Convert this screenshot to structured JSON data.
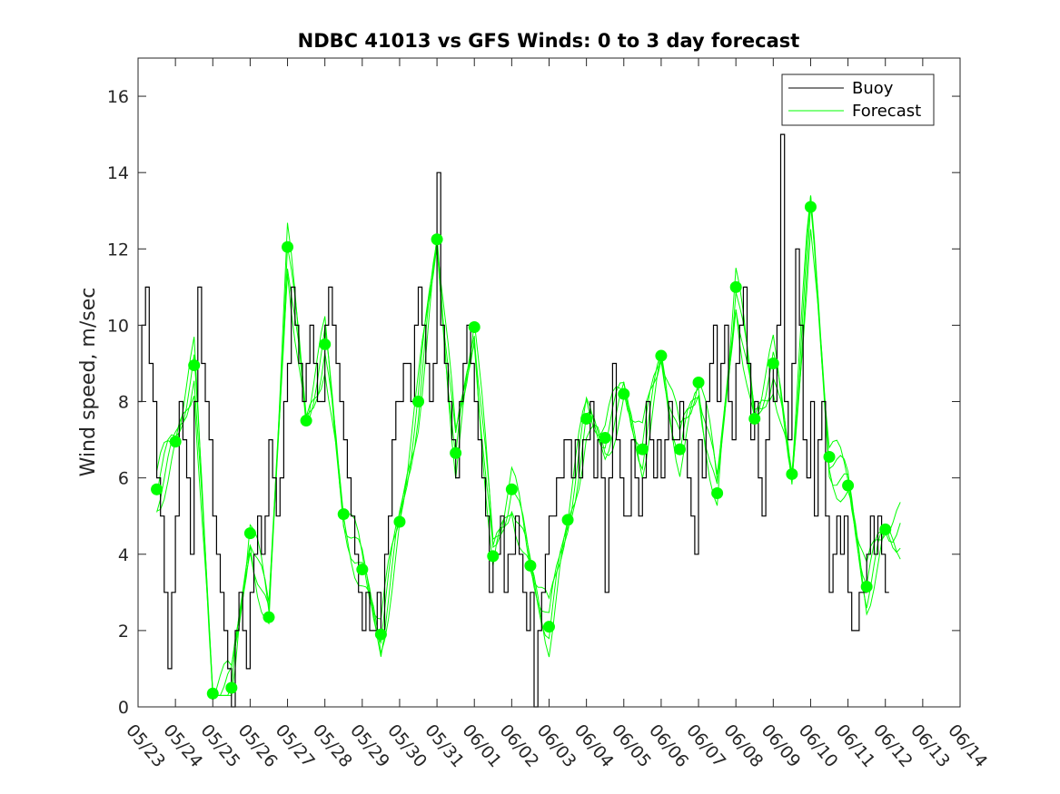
{
  "chart_data": {
    "type": "line",
    "title": "NDBC 41013 vs GFS Winds: 0 to 3 day forecast",
    "xlabel": "",
    "ylabel": "Wind speed, m/sec",
    "xlim": [
      "05/23",
      "06/14"
    ],
    "ylim": [
      0,
      17
    ],
    "x_tick_labels": [
      "05/23",
      "05/24",
      "05/25",
      "05/26",
      "05/27",
      "05/28",
      "05/29",
      "05/30",
      "05/31",
      "06/01",
      "06/02",
      "06/03",
      "06/04",
      "06/05",
      "06/06",
      "06/07",
      "06/08",
      "06/09",
      "06/10",
      "06/11",
      "06/12",
      "06/13",
      "06/14"
    ],
    "y_ticks": [
      0,
      2,
      4,
      6,
      8,
      10,
      12,
      14,
      16
    ],
    "grid": false,
    "legend_position": "top-right",
    "colors": {
      "buoy": "#000000",
      "forecast": "#00ff00"
    },
    "series": [
      {
        "name": "Buoy",
        "x_days": [
          0,
          0.1,
          0.2,
          0.3,
          0.4,
          0.5,
          0.6,
          0.7,
          0.8,
          0.9,
          1.0,
          1.1,
          1.2,
          1.3,
          1.4,
          1.5,
          1.6,
          1.7,
          1.8,
          1.9,
          2.0,
          2.1,
          2.2,
          2.3,
          2.4,
          2.5,
          2.6,
          2.7,
          2.8,
          2.9,
          3.0,
          3.1,
          3.2,
          3.3,
          3.4,
          3.5,
          3.6,
          3.7,
          3.8,
          3.9,
          4.0,
          4.1,
          4.2,
          4.3,
          4.4,
          4.5,
          4.6,
          4.7,
          4.8,
          4.9,
          5.0,
          5.1,
          5.2,
          5.3,
          5.4,
          5.5,
          5.6,
          5.7,
          5.8,
          5.9,
          6.0,
          6.1,
          6.2,
          6.3,
          6.4,
          6.5,
          6.6,
          6.7,
          6.8,
          6.9,
          7.0,
          7.1,
          7.2,
          7.3,
          7.4,
          7.5,
          7.6,
          7.7,
          7.8,
          7.9,
          8.0,
          8.1,
          8.2,
          8.3,
          8.4,
          8.5,
          8.6,
          8.7,
          8.8,
          8.9,
          9.0,
          9.1,
          9.2,
          9.3,
          9.4,
          9.5,
          9.6,
          9.7,
          9.8,
          9.9,
          10.0,
          10.1,
          10.2,
          10.3,
          10.4,
          10.5,
          10.6,
          10.7,
          10.8,
          10.9,
          11.0,
          11.1,
          11.2,
          11.3,
          11.4,
          11.5,
          11.6,
          11.7,
          11.8,
          11.9,
          12.0,
          12.1,
          12.2,
          12.3,
          12.4,
          12.5,
          12.6,
          12.7,
          12.8,
          12.9,
          13.0,
          13.1,
          13.2,
          13.3,
          13.4,
          13.5,
          13.6,
          13.7,
          13.8,
          13.9,
          14.0,
          14.1,
          14.2,
          14.3,
          14.4,
          14.5,
          14.6,
          14.7,
          14.8,
          14.9,
          15.0,
          15.1,
          15.2,
          15.3,
          15.4,
          15.5,
          15.6,
          15.7,
          15.8,
          15.9,
          16.0,
          16.1,
          16.2,
          16.3,
          16.4,
          16.5,
          16.6,
          16.7,
          16.8,
          16.9,
          17.0,
          17.1,
          17.2,
          17.3,
          17.4,
          17.5,
          17.6,
          17.7,
          17.8,
          17.9,
          18.0,
          18.1,
          18.2,
          18.3,
          18.4,
          18.5,
          18.6,
          18.7,
          18.8,
          18.9,
          19.0,
          19.1,
          19.2,
          19.3,
          19.4,
          19.5,
          19.6,
          19.7,
          19.8,
          19.9,
          20.0,
          20.1
        ],
        "values": [
          8,
          10,
          11,
          9,
          8,
          6,
          5,
          3,
          1,
          3,
          5,
          8,
          7,
          6,
          4,
          8,
          11,
          9,
          8,
          7,
          5,
          4,
          3,
          2,
          1,
          0,
          2,
          3,
          2,
          1,
          3,
          4,
          5,
          4,
          5,
          7,
          6,
          5,
          6,
          8,
          9,
          11,
          10,
          9,
          8,
          9,
          10,
          9,
          8,
          8,
          10,
          11,
          10,
          9,
          8,
          7,
          6,
          5,
          4,
          3,
          2,
          3,
          2,
          2,
          3,
          2,
          4,
          5,
          7,
          8,
          8,
          9,
          9,
          8,
          10,
          11,
          10,
          9,
          8,
          9,
          14,
          10,
          9,
          8,
          7,
          6,
          8,
          9,
          10,
          9,
          8,
          7,
          6,
          5,
          3,
          4,
          4,
          5,
          3,
          4,
          4,
          5,
          4,
          3,
          2,
          3,
          0,
          2,
          3,
          4,
          5,
          5,
          6,
          6,
          7,
          7,
          6,
          7,
          6,
          7,
          7,
          8,
          6,
          7,
          6,
          3,
          6,
          9,
          7,
          6,
          5,
          5,
          7,
          6,
          5,
          6,
          8,
          7,
          6,
          7,
          6,
          7,
          8,
          7,
          7,
          8,
          7,
          6,
          5,
          4,
          7,
          6,
          8,
          9,
          10,
          8,
          9,
          10,
          8,
          7,
          9,
          10,
          11,
          9,
          7,
          8,
          6,
          5,
          7,
          9,
          8,
          10,
          15,
          8,
          7,
          9,
          12,
          10,
          7,
          6,
          8,
          5,
          7,
          8,
          5,
          3,
          4,
          5,
          4,
          5,
          3,
          2,
          2,
          3,
          3,
          4,
          5,
          4,
          5,
          4,
          3,
          3
        ]
      },
      {
        "name": "Forecast",
        "points_days": [
          0.5,
          1.0,
          1.5,
          2.0,
          2.5,
          3.0,
          3.5,
          4.0,
          4.5,
          5.0,
          5.5,
          6.0,
          6.5,
          7.0,
          7.5,
          8.0,
          8.5,
          9.0,
          9.5,
          10.0,
          10.5,
          11.0,
          11.5,
          12.0,
          12.5,
          13.0,
          13.5,
          14.0,
          14.5,
          15.0,
          15.5,
          16.0,
          16.5,
          17.0,
          17.5,
          18.0,
          18.5,
          19.0,
          19.5,
          20.0
        ],
        "points_values": [
          5.7,
          6.95,
          8.95,
          0.35,
          0.5,
          4.55,
          2.35,
          12.05,
          7.5,
          9.5,
          5.05,
          3.6,
          1.9,
          4.85,
          8.0,
          12.25,
          6.65,
          9.95,
          3.95,
          5.7,
          3.7,
          2.1,
          4.9,
          7.55,
          7.05,
          8.2,
          6.75,
          9.2,
          6.75,
          8.5,
          5.6,
          11.0,
          7.55,
          9.0,
          6.1,
          13.1,
          6.55,
          5.8,
          3.15,
          4.65
        ]
      }
    ]
  },
  "legend": {
    "buoy_label": "Buoy",
    "forecast_label": "Forecast"
  }
}
